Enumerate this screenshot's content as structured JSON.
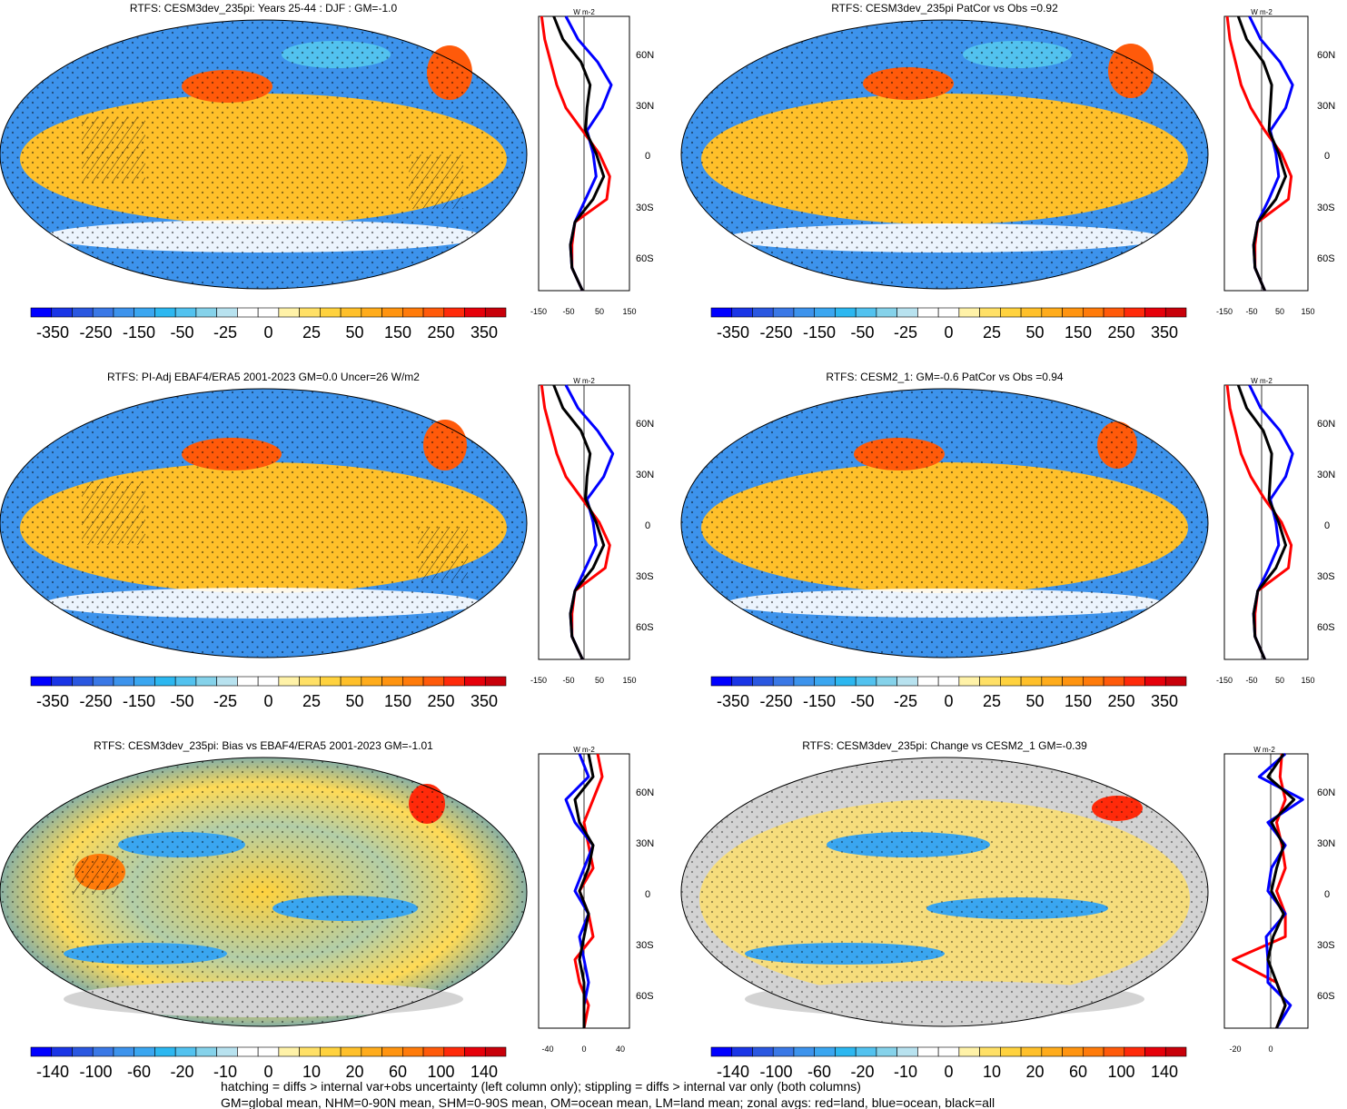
{
  "panels": [
    {
      "title": "RTFS: CESM3dev_235pi: Years 25-44 : DJF : GM=-1.0"
    },
    {
      "title": "RTFS: CESM3dev_235pi PatCor vs Obs =0.92"
    },
    {
      "title": "RTFS: PI-Adj EBAF4/ERA5 2001-2023 GM=0.0 Uncer=26 W/m2"
    },
    {
      "title": "RTFS: CESM2_1: GM=-0.6 PatCor vs Obs =0.94"
    },
    {
      "title": "RTFS: CESM3dev_235pi: Bias vs EBAF4/ERA5 2001-2023 GM=-1.01"
    },
    {
      "title": "RTFS: CESM3dev_235pi: Change vs CESM2_1 GM=-0.39"
    }
  ],
  "colorbars": {
    "full": [
      "-350",
      "-250",
      "-150",
      "-50",
      "-25",
      "0",
      "25",
      "50",
      "150",
      "250",
      "350"
    ],
    "diff": [
      "-140",
      "-100",
      "-60",
      "-20",
      "-10",
      "0",
      "10",
      "20",
      "60",
      "100",
      "140"
    ],
    "colors": [
      "#0000ff",
      "#1a35e6",
      "#2a57e0",
      "#3a78e6",
      "#3d93ec",
      "#3aa6f0",
      "#2cb7f0",
      "#52c2ef",
      "#85d2ea",
      "#b8e2ef",
      "#ffffff",
      "#ffffff",
      "#fff2a8",
      "#ffe066",
      "#ffd23e",
      "#ffc02a",
      "#ffac1c",
      "#ff9410",
      "#ff7b0a",
      "#ff5a0a",
      "#ff2a0a",
      "#e6000a",
      "#c8000a"
    ]
  },
  "zonal": {
    "unit": "W m-2",
    "lat_ticks": [
      "60N",
      "30N",
      "0",
      "30S",
      "60S"
    ],
    "x_ticks_full": [
      "-150",
      "-50",
      "50",
      "150"
    ],
    "x_ticks_bias": [
      "-40",
      "0",
      "40"
    ],
    "x_ticks_change": [
      "-20",
      "0"
    ]
  },
  "chart_data": [
    {
      "type": "line",
      "panel": "top-left zonal",
      "x_range": [
        -150,
        150
      ],
      "lat": [
        -90,
        -75,
        -60,
        -45,
        -30,
        -15,
        0,
        15,
        30,
        45,
        60,
        75,
        90
      ],
      "series": [
        {
          "color": "#ff0000",
          "values": [
            -5,
            -40,
            -40,
            -30,
            75,
            85,
            50,
            -5,
            -60,
            -90,
            -110,
            -130,
            -140
          ]
        },
        {
          "color": "#0000ff",
          "values": [
            -5,
            -40,
            -45,
            -30,
            5,
            40,
            30,
            10,
            60,
            90,
            45,
            -20,
            -60
          ]
        },
        {
          "color": "#000000",
          "values": [
            -5,
            -40,
            -45,
            -30,
            30,
            65,
            40,
            5,
            10,
            20,
            -10,
            -70,
            -100
          ]
        }
      ]
    },
    {
      "type": "line",
      "panel": "top-right zonal",
      "x_range": [
        -150,
        150
      ],
      "lat": [
        -90,
        -75,
        -60,
        -45,
        -30,
        -15,
        0,
        15,
        30,
        45,
        60,
        75,
        90
      ],
      "series": [
        {
          "color": "#ff0000",
          "values": [
            -5,
            -40,
            -40,
            -30,
            80,
            90,
            55,
            -5,
            -55,
            -90,
            -110,
            -130,
            -140
          ]
        },
        {
          "color": "#0000ff",
          "values": [
            -5,
            -40,
            -45,
            -30,
            10,
            45,
            35,
            15,
            70,
            95,
            50,
            -20,
            -60
          ]
        },
        {
          "color": "#000000",
          "values": [
            -5,
            -40,
            -45,
            -30,
            35,
            70,
            45,
            10,
            15,
            20,
            -10,
            -70,
            -100
          ]
        }
      ]
    },
    {
      "type": "line",
      "panel": "middle-left zonal",
      "x_range": [
        -150,
        150
      ],
      "lat": [
        -90,
        -75,
        -60,
        -45,
        -30,
        -15,
        0,
        15,
        30,
        45,
        60,
        75,
        90
      ],
      "series": [
        {
          "color": "#ff0000",
          "values": [
            -5,
            -40,
            -40,
            -30,
            70,
            85,
            50,
            -5,
            -60,
            -90,
            -110,
            -130,
            -140
          ]
        },
        {
          "color": "#0000ff",
          "values": [
            -5,
            -40,
            -45,
            -30,
            5,
            40,
            30,
            10,
            65,
            95,
            45,
            -20,
            -60
          ]
        },
        {
          "color": "#000000",
          "values": [
            -5,
            -40,
            -45,
            -30,
            30,
            65,
            40,
            5,
            10,
            20,
            -10,
            -70,
            -100
          ]
        }
      ]
    },
    {
      "type": "line",
      "panel": "middle-right zonal",
      "x_range": [
        -150,
        150
      ],
      "lat": [
        -90,
        -75,
        -60,
        -45,
        -30,
        -15,
        0,
        15,
        30,
        45,
        60,
        75,
        90
      ],
      "series": [
        {
          "color": "#ff0000",
          "values": [
            -5,
            -40,
            -40,
            -30,
            80,
            90,
            55,
            -5,
            -55,
            -90,
            -110,
            -130,
            -140
          ]
        },
        {
          "color": "#0000ff",
          "values": [
            -5,
            -40,
            -45,
            -30,
            10,
            45,
            35,
            15,
            70,
            95,
            50,
            -20,
            -60
          ]
        },
        {
          "color": "#000000",
          "values": [
            -5,
            -40,
            -45,
            -30,
            35,
            70,
            45,
            10,
            15,
            20,
            -10,
            -70,
            -100
          ]
        }
      ]
    },
    {
      "type": "line",
      "panel": "bottom-left zonal",
      "x_range": [
        -50,
        50
      ],
      "lat": [
        -90,
        -75,
        -60,
        -45,
        -30,
        -15,
        0,
        15,
        30,
        45,
        60,
        75,
        90
      ],
      "series": [
        {
          "color": "#ff0000",
          "values": [
            0,
            5,
            -5,
            -10,
            10,
            5,
            -5,
            10,
            5,
            0,
            10,
            20,
            15
          ]
        },
        {
          "color": "#0000ff",
          "values": [
            0,
            0,
            5,
            0,
            -5,
            5,
            -10,
            0,
            10,
            -10,
            -20,
            5,
            -5
          ]
        },
        {
          "color": "#000000",
          "values": [
            0,
            0,
            0,
            -5,
            0,
            5,
            -5,
            5,
            10,
            -5,
            -10,
            10,
            5
          ]
        }
      ]
    },
    {
      "type": "line",
      "panel": "bottom-right zonal",
      "x_range": [
        -30,
        18
      ],
      "lat": [
        -90,
        -75,
        -60,
        -45,
        -30,
        -15,
        0,
        15,
        30,
        45,
        60,
        75,
        90
      ],
      "series": [
        {
          "color": "#ff0000",
          "values": [
            0,
            5,
            0,
            -25,
            5,
            5,
            0,
            5,
            3,
            0,
            5,
            2,
            3
          ]
        },
        {
          "color": "#0000ff",
          "values": [
            0,
            8,
            -5,
            -5,
            -6,
            5,
            -5,
            -3,
            5,
            -5,
            15,
            -10,
            5
          ]
        },
        {
          "color": "#000000",
          "values": [
            0,
            5,
            0,
            -5,
            -2,
            4,
            -3,
            0,
            4,
            -3,
            10,
            -5,
            4
          ]
        }
      ]
    }
  ],
  "footer": {
    "line1": "hatching = diffs > internal var+obs uncertainty (left column only); stippling = diffs > internal var only (both columns)",
    "line2": "GM=global mean, NHM=0-90N mean, SHM=0-90S mean, OM=ocean mean, LM=land mean; zonal avgs: red=land, blue=ocean, black=all"
  }
}
